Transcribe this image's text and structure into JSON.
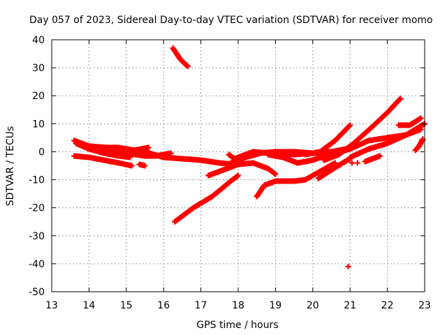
{
  "chart_data": {
    "type": "scatter",
    "title": "Day 057 of 2023, Sidereal Day-to-day VTEC variation (SDTVAR) for receiver momo",
    "xlabel": "GPS time / hours",
    "ylabel": "SDTVAR / TECUs",
    "xlim": [
      13,
      23
    ],
    "ylim": [
      -50,
      40
    ],
    "xticks": [
      "13",
      "14",
      "15",
      "16",
      "17",
      "18",
      "19",
      "20",
      "21",
      "22",
      "23"
    ],
    "yticks": [
      "40",
      "30",
      "20",
      "10",
      "0",
      "-10",
      "-20",
      "-30",
      "-40",
      "-50"
    ],
    "grid": true,
    "marker_color": "#ff0000",
    "series": [
      {
        "name": "track-1",
        "x": [
          13.6,
          13.8,
          14.0,
          14.3,
          14.6,
          14.9,
          15.1
        ],
        "y": [
          4,
          3,
          2,
          1,
          0,
          -0.5,
          -1
        ]
      },
      {
        "name": "track-2",
        "x": [
          13.65,
          14.0,
          14.4,
          14.8,
          15.1
        ],
        "y": [
          3,
          1,
          -0.5,
          -1.5,
          -2
        ]
      },
      {
        "name": "track-3",
        "x": [
          13.6,
          14.0,
          14.4,
          14.8,
          15.15
        ],
        "y": [
          -1.5,
          -2,
          -3,
          -4,
          -5
        ]
      },
      {
        "name": "track-4",
        "x": [
          14.0,
          14.5,
          15.0,
          15.5,
          16.0,
          16.5,
          17.0,
          17.5,
          17.9
        ],
        "y": [
          2,
          1.5,
          1,
          0,
          -2,
          -2.5,
          -3,
          -4,
          -4.5
        ]
      },
      {
        "name": "track-5",
        "x": [
          14.2,
          14.8,
          15.2,
          15.6
        ],
        "y": [
          1.5,
          1.5,
          0.5,
          1.5
        ]
      },
      {
        "name": "track-6",
        "x": [
          15.0,
          15.5,
          15.8,
          16.2
        ],
        "y": [
          -0.5,
          -1.5,
          -1.5,
          -0.5
        ]
      },
      {
        "name": "track-7",
        "x": [
          15.35,
          15.5
        ],
        "y": [
          -4.5,
          -5
        ]
      },
      {
        "name": "track-8",
        "x": [
          16.25,
          16.45,
          16.65
        ],
        "y": [
          37,
          33,
          30.5
        ]
      },
      {
        "name": "track-9",
        "x": [
          16.3,
          16.8,
          17.3,
          17.8,
          18.0
        ],
        "y": [
          -25,
          -20,
          -16,
          -10.5,
          -8.5
        ]
      },
      {
        "name": "track-10",
        "x": [
          17.2,
          17.6,
          18.0,
          18.4,
          18.8,
          19.0
        ],
        "y": [
          -8.5,
          -6.5,
          -4.5,
          -4,
          -6,
          -8
        ]
      },
      {
        "name": "track-11",
        "x": [
          17.75,
          17.9,
          18.1,
          18.4,
          18.8,
          19.4
        ],
        "y": [
          -1,
          -2.5,
          -1.5,
          0,
          -0.5,
          -1
        ]
      },
      {
        "name": "track-12",
        "x": [
          17.8,
          18.2,
          18.6,
          19.0,
          19.5,
          20.0,
          20.4
        ],
        "y": [
          -4,
          -2,
          -0.5,
          0,
          0,
          -0.5,
          0.5
        ]
      },
      {
        "name": "track-13",
        "x": [
          18.5,
          18.7,
          19.0,
          19.5,
          19.8,
          20.2,
          20.6
        ],
        "y": [
          -16,
          -12,
          -10.5,
          -10.5,
          -10,
          -7,
          -4
        ]
      },
      {
        "name": "track-14",
        "x": [
          18.8,
          19.2,
          19.6,
          20.0,
          20.4
        ],
        "y": [
          -1,
          -2,
          -4,
          -3,
          -1
        ]
      },
      {
        "name": "track-15",
        "x": [
          19.0,
          19.5,
          20.0,
          20.5,
          20.9,
          21.15
        ],
        "y": [
          -0.5,
          -1,
          -0.5,
          0,
          1,
          3
        ]
      },
      {
        "name": "track-16",
        "x": [
          19.8,
          20.2,
          20.6,
          21.0
        ],
        "y": [
          -1,
          0,
          4,
          9.5
        ]
      },
      {
        "name": "track-17",
        "x": [
          20.15,
          20.5,
          20.8,
          21.0
        ],
        "y": [
          -9.5,
          -6.5,
          -4,
          -2.5
        ]
      },
      {
        "name": "track-18",
        "x": [
          20.3,
          20.7,
          21.1,
          21.6,
          22.0,
          22.35
        ],
        "y": [
          -3,
          -1,
          3,
          9,
          14,
          19
        ]
      },
      {
        "name": "track-19",
        "x": [
          20.5,
          21.0,
          21.5,
          22.0,
          22.5,
          22.9
        ],
        "y": [
          -1,
          1,
          4,
          5,
          6,
          8
        ]
      },
      {
        "name": "track-20",
        "x": [
          21.0,
          21.5,
          22.0,
          22.5,
          23.0
        ],
        "y": [
          -2,
          1,
          3,
          6,
          10
        ]
      },
      {
        "name": "track-21",
        "x": [
          21.4,
          21.6,
          21.8
        ],
        "y": [
          -3.5,
          -2.5,
          -1.5
        ]
      },
      {
        "name": "track-22",
        "x": [
          22.3,
          22.6,
          22.9
        ],
        "y": [
          9.5,
          9.5,
          12
        ]
      },
      {
        "name": "track-23",
        "x": [
          22.75,
          22.85,
          22.95
        ],
        "y": [
          0.5,
          2,
          4.5
        ]
      },
      {
        "name": "isolated-points",
        "x": [
          20.95,
          21.2,
          21.05
        ],
        "y": [
          -41,
          -4,
          -4
        ]
      }
    ]
  }
}
